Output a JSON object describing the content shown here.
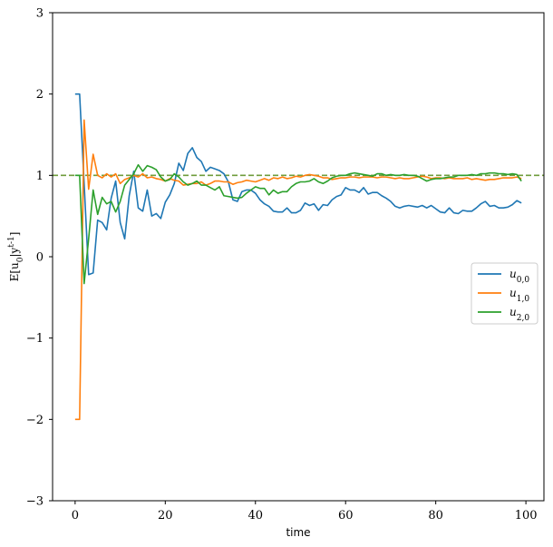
{
  "chart_data": {
    "type": "line",
    "title": "",
    "xlabel": "time",
    "ylabel": "E[u_0|y^{t-1}]",
    "xlim": [
      -5,
      104
    ],
    "ylim": [
      -3,
      3
    ],
    "xticks": [
      0,
      20,
      40,
      60,
      80,
      100
    ],
    "yticks": [
      -3,
      -2,
      -1,
      0,
      1,
      2,
      3
    ],
    "xtick_labels": [
      "0",
      "20",
      "40",
      "60",
      "80",
      "100"
    ],
    "ytick_labels": [
      "−3",
      "−2",
      "−1",
      "0",
      "1",
      "2",
      "3"
    ],
    "grid": false,
    "legend_position": "center-right",
    "reference_line": {
      "y": 1.0,
      "style": "dashed",
      "color": "#6f9d3c"
    },
    "x": [
      0,
      1,
      2,
      3,
      4,
      5,
      6,
      7,
      8,
      9,
      10,
      11,
      12,
      13,
      14,
      15,
      16,
      17,
      18,
      19,
      20,
      21,
      22,
      23,
      24,
      25,
      26,
      27,
      28,
      29,
      30,
      31,
      32,
      33,
      34,
      35,
      36,
      37,
      38,
      39,
      40,
      41,
      42,
      43,
      44,
      45,
      46,
      47,
      48,
      49,
      50,
      51,
      52,
      53,
      54,
      55,
      56,
      57,
      58,
      59,
      60,
      61,
      62,
      63,
      64,
      65,
      66,
      67,
      68,
      69,
      70,
      71,
      72,
      73,
      74,
      75,
      76,
      77,
      78,
      79,
      80,
      81,
      82,
      83,
      84,
      85,
      86,
      87,
      88,
      89,
      90,
      91,
      92,
      93,
      94,
      95,
      96,
      97,
      98,
      99
    ],
    "series": [
      {
        "name": "u_{0,0}",
        "color": "#1f77b4",
        "values": [
          2.0,
          2.0,
          0.9,
          -0.22,
          -0.2,
          0.45,
          0.42,
          0.33,
          0.72,
          0.93,
          0.42,
          0.22,
          0.75,
          1.05,
          0.6,
          0.56,
          0.82,
          0.5,
          0.53,
          0.47,
          0.67,
          0.76,
          0.9,
          1.15,
          1.06,
          1.27,
          1.34,
          1.22,
          1.17,
          1.05,
          1.1,
          1.08,
          1.06,
          1.02,
          0.92,
          0.7,
          0.68,
          0.8,
          0.82,
          0.82,
          0.78,
          0.7,
          0.65,
          0.62,
          0.56,
          0.55,
          0.55,
          0.6,
          0.54,
          0.54,
          0.57,
          0.66,
          0.63,
          0.65,
          0.57,
          0.64,
          0.63,
          0.7,
          0.74,
          0.76,
          0.85,
          0.82,
          0.82,
          0.79,
          0.85,
          0.77,
          0.79,
          0.79,
          0.75,
          0.72,
          0.68,
          0.62,
          0.6,
          0.62,
          0.63,
          0.62,
          0.61,
          0.63,
          0.6,
          0.63,
          0.59,
          0.55,
          0.54,
          0.6,
          0.54,
          0.53,
          0.57,
          0.56,
          0.56,
          0.6,
          0.65,
          0.68,
          0.62,
          0.63,
          0.6,
          0.6,
          0.61,
          0.64,
          0.69,
          0.66
        ]
      },
      {
        "name": "u_{1,0}",
        "color": "#ff7f0e",
        "values": [
          -2.0,
          -2.0,
          1.68,
          0.83,
          1.26,
          1.0,
          0.97,
          1.02,
          0.98,
          1.02,
          0.9,
          0.95,
          0.97,
          1.0,
          0.98,
          1.02,
          0.97,
          0.98,
          0.96,
          0.95,
          0.93,
          0.96,
          0.94,
          0.93,
          0.88,
          0.89,
          0.9,
          0.9,
          0.92,
          0.88,
          0.9,
          0.93,
          0.93,
          0.92,
          0.92,
          0.89,
          0.91,
          0.92,
          0.94,
          0.93,
          0.92,
          0.94,
          0.96,
          0.94,
          0.97,
          0.96,
          0.98,
          0.96,
          0.97,
          0.99,
          0.98,
          1.0,
          1.01,
          1.0,
          0.99,
          0.97,
          0.97,
          0.95,
          0.96,
          0.97,
          0.97,
          0.98,
          0.98,
          0.97,
          0.98,
          0.98,
          0.98,
          0.97,
          0.98,
          0.98,
          0.97,
          0.96,
          0.97,
          0.96,
          0.96,
          0.97,
          0.98,
          0.99,
          0.98,
          0.96,
          0.97,
          0.97,
          0.96,
          0.97,
          0.96,
          0.96,
          0.96,
          0.97,
          0.95,
          0.96,
          0.95,
          0.94,
          0.95,
          0.95,
          0.96,
          0.97,
          0.97,
          0.97,
          0.98,
          0.96
        ]
      },
      {
        "name": "u_{2,0}",
        "color": "#2ca02c",
        "values": [
          1.0,
          1.0,
          -0.33,
          0.22,
          0.82,
          0.52,
          0.73,
          0.65,
          0.68,
          0.55,
          0.68,
          0.88,
          0.95,
          1.02,
          1.13,
          1.05,
          1.12,
          1.1,
          1.07,
          0.98,
          0.93,
          0.95,
          1.02,
          0.98,
          0.92,
          0.88,
          0.9,
          0.93,
          0.88,
          0.88,
          0.85,
          0.82,
          0.86,
          0.75,
          0.74,
          0.73,
          0.72,
          0.73,
          0.78,
          0.82,
          0.86,
          0.84,
          0.84,
          0.76,
          0.82,
          0.78,
          0.8,
          0.8,
          0.86,
          0.9,
          0.92,
          0.92,
          0.93,
          0.96,
          0.92,
          0.9,
          0.93,
          0.97,
          0.99,
          1.0,
          1.0,
          1.02,
          1.03,
          1.02,
          1.01,
          1.0,
          0.99,
          1.02,
          1.02,
          1.0,
          1.01,
          1.0,
          1.0,
          1.01,
          1.0,
          1.0,
          0.99,
          0.96,
          0.93,
          0.95,
          0.96,
          0.96,
          0.97,
          0.98,
          0.98,
          1.0,
          1.0,
          1.0,
          1.01,
          1.0,
          1.02,
          1.02,
          1.03,
          1.03,
          1.02,
          1.02,
          1.01,
          1.02,
          1.01,
          0.93
        ]
      }
    ]
  }
}
